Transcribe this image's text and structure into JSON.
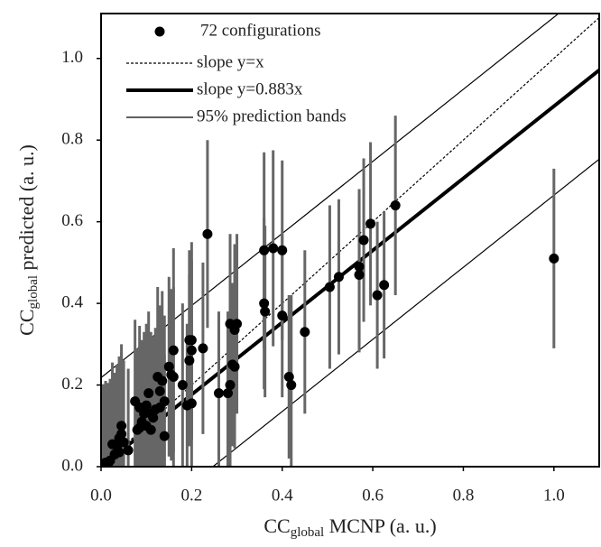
{
  "chart_data": {
    "type": "scatter",
    "x_label": {
      "main": "CC",
      "sub": "global",
      "rest": " MCNP (a. u.)"
    },
    "y_label": {
      "main": "CC",
      "sub": "global",
      "rest": " predicted (a. u.)"
    },
    "xlim": [
      0,
      1.1
    ],
    "ylim": [
      0,
      1.11
    ],
    "xticks": [
      {
        "value": 0,
        "label": "0.0"
      },
      0.2,
      0.4,
      0.6,
      0.8,
      {
        "value": 1,
        "label": "1.0"
      }
    ],
    "yticks": [
      {
        "value": 0,
        "label": "0.0"
      },
      0.2,
      0.4,
      0.6,
      0.8,
      {
        "value": 1,
        "label": "1.0"
      }
    ],
    "series": [
      {
        "name": "72 configurations",
        "color": "#000000",
        "error_color": "#666666",
        "x": [
          1.0,
          0.65,
          0.595,
          0.58,
          0.57,
          0.57,
          0.625,
          0.61,
          0.525,
          0.505,
          0.45,
          0.415,
          0.42,
          0.4,
          0.38,
          0.36,
          0.36,
          0.362,
          0.4,
          0.3,
          0.285,
          0.295,
          0.29,
          0.295,
          0.285,
          0.28,
          0.26,
          0.235,
          0.225,
          0.2,
          0.195,
          0.2,
          0.195,
          0.19,
          0.2,
          0.18,
          0.16,
          0.16,
          0.15,
          0.155,
          0.135,
          0.125,
          0.13,
          0.14,
          0.13,
          0.12,
          0.115,
          0.11,
          0.105,
          0.1,
          0.095,
          0.09,
          0.085,
          0.08,
          0.075,
          0.085,
          0.14,
          0.06,
          0.045,
          0.045,
          0.04,
          0.035,
          0.025,
          0.04,
          0.02,
          0.01,
          0.015,
          0.005,
          0.03,
          0.1,
          0.11,
          0.05
        ],
        "y": [
          0.51,
          0.64,
          0.595,
          0.555,
          0.49,
          0.47,
          0.445,
          0.42,
          0.465,
          0.44,
          0.33,
          0.22,
          0.2,
          0.53,
          0.535,
          0.53,
          0.4,
          0.38,
          0.37,
          0.35,
          0.35,
          0.335,
          0.25,
          0.245,
          0.2,
          0.18,
          0.18,
          0.57,
          0.29,
          0.31,
          0.31,
          0.285,
          0.26,
          0.15,
          0.155,
          0.2,
          0.285,
          0.22,
          0.245,
          0.225,
          0.21,
          0.22,
          0.185,
          0.16,
          0.145,
          0.14,
          0.12,
          0.13,
          0.18,
          0.15,
          0.13,
          0.11,
          0.095,
          0.09,
          0.16,
          0.145,
          0.075,
          0.04,
          0.1,
          0.08,
          0.07,
          0.05,
          0.055,
          0.035,
          0.015,
          0.01,
          0.005,
          0.002,
          0.03,
          0.1,
          0.09,
          0.06
        ],
        "error": [
          0.22,
          0.22,
          0.2,
          0.2,
          0.19,
          0.19,
          0.18,
          0.18,
          0.19,
          0.2,
          0.2,
          0.2,
          0.22,
          0.22,
          0.24,
          0.24,
          0.21,
          0.21,
          0.2,
          0.22,
          0.22,
          0.21,
          0.2,
          0.2,
          0.2,
          0.2,
          0.2,
          0.23,
          0.21,
          0.24,
          0.22,
          0.22,
          0.21,
          0.2,
          0.2,
          0.2,
          0.25,
          0.22,
          0.22,
          0.21,
          0.22,
          0.22,
          0.21,
          0.21,
          0.2,
          0.2,
          0.2,
          0.2,
          0.2,
          0.2,
          0.2,
          0.2,
          0.2,
          0.2,
          0.2,
          0.2,
          0.2,
          0.2,
          0.2,
          0.2,
          0.2,
          0.2,
          0.2,
          0.2,
          0.2,
          0.2,
          0.2,
          0.2,
          0.2,
          0.2,
          0.2,
          0.2
        ]
      }
    ],
    "lines": [
      {
        "name": "slope y=x",
        "slope": 1,
        "intercepts": [
          0
        ],
        "style": "dotted"
      },
      {
        "name": "slope y=0.883x",
        "slope": 0.883,
        "intercepts": [
          0
        ],
        "style": "thick"
      },
      {
        "name": "95% prediction bands",
        "slope": 0.883,
        "intercepts": [
          0.218,
          -0.218
        ],
        "style": "thin"
      }
    ]
  }
}
